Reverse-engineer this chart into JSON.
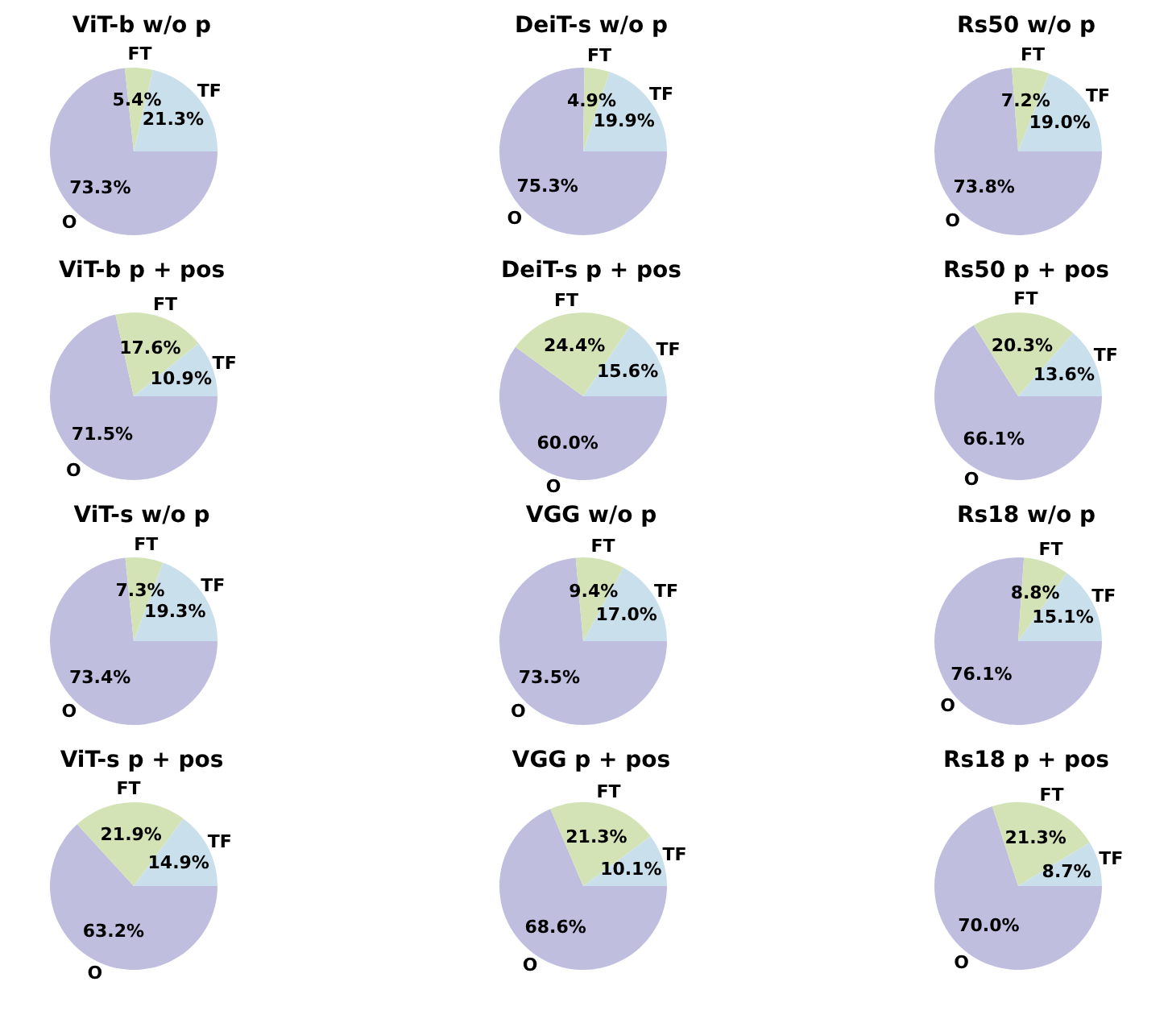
{
  "chart_data": [
    {
      "type": "pie",
      "title": "ViT-b w/o p",
      "categories": [
        "TF",
        "FT",
        "O"
      ],
      "values": [
        21.3,
        5.4,
        73.3
      ],
      "colors": [
        "#c9e0ec",
        "#d3e3b5",
        "#c0bedf"
      ],
      "value_labels": [
        "21.3%",
        "5.4%",
        "73.3%"
      ]
    },
    {
      "type": "pie",
      "title": "DeiT-s w/o p",
      "categories": [
        "TF",
        "FT",
        "O"
      ],
      "values": [
        19.9,
        4.9,
        75.3
      ],
      "colors": [
        "#c9e0ec",
        "#d3e3b5",
        "#c0bedf"
      ],
      "value_labels": [
        "19.9%",
        "4.9%",
        "75.3%"
      ]
    },
    {
      "type": "pie",
      "title": "Rs50 w/o p",
      "categories": [
        "TF",
        "FT",
        "O"
      ],
      "values": [
        19.0,
        7.2,
        73.8
      ],
      "colors": [
        "#c9e0ec",
        "#d3e3b5",
        "#c0bedf"
      ],
      "value_labels": [
        "19.0%",
        "7.2%",
        "73.8%"
      ]
    },
    {
      "type": "pie",
      "title": "ViT-b p + pos",
      "categories": [
        "TF",
        "FT",
        "O"
      ],
      "values": [
        10.9,
        17.6,
        71.5
      ],
      "colors": [
        "#c9e0ec",
        "#d3e3b5",
        "#c0bedf"
      ],
      "value_labels": [
        "10.9%",
        "17.6%",
        "71.5%"
      ]
    },
    {
      "type": "pie",
      "title": "DeiT-s p + pos",
      "categories": [
        "TF",
        "FT",
        "O"
      ],
      "values": [
        15.6,
        24.4,
        60.0
      ],
      "colors": [
        "#c9e0ec",
        "#d3e3b5",
        "#c0bedf"
      ],
      "value_labels": [
        "15.6%",
        "24.4%",
        "60.0%"
      ]
    },
    {
      "type": "pie",
      "title": "Rs50 p + pos",
      "categories": [
        "TF",
        "FT",
        "O"
      ],
      "values": [
        13.6,
        20.3,
        66.1
      ],
      "colors": [
        "#c9e0ec",
        "#d3e3b5",
        "#c0bedf"
      ],
      "value_labels": [
        "13.6%",
        "20.3%",
        "66.1%"
      ]
    },
    {
      "type": "pie",
      "title": "ViT-s w/o p",
      "categories": [
        "TF",
        "FT",
        "O"
      ],
      "values": [
        19.3,
        7.3,
        73.4
      ],
      "colors": [
        "#c9e0ec",
        "#d3e3b5",
        "#c0bedf"
      ],
      "value_labels": [
        "19.3%",
        "7.3%",
        "73.4%"
      ]
    },
    {
      "type": "pie",
      "title": "VGG w/o p",
      "categories": [
        "TF",
        "FT",
        "O"
      ],
      "values": [
        17.0,
        9.4,
        73.5
      ],
      "colors": [
        "#c9e0ec",
        "#d3e3b5",
        "#c0bedf"
      ],
      "value_labels": [
        "17.0%",
        "9.4%",
        "73.5%"
      ]
    },
    {
      "type": "pie",
      "title": "Rs18 w/o p",
      "categories": [
        "TF",
        "FT",
        "O"
      ],
      "values": [
        15.1,
        8.8,
        76.1
      ],
      "colors": [
        "#c9e0ec",
        "#d3e3b5",
        "#c0bedf"
      ],
      "value_labels": [
        "15.1%",
        "8.8%",
        "76.1%"
      ]
    },
    {
      "type": "pie",
      "title": "ViT-s p + pos",
      "categories": [
        "TF",
        "FT",
        "O"
      ],
      "values": [
        14.9,
        21.9,
        63.2
      ],
      "colors": [
        "#c9e0ec",
        "#d3e3b5",
        "#c0bedf"
      ],
      "value_labels": [
        "14.9%",
        "21.9%",
        "63.2%"
      ]
    },
    {
      "type": "pie",
      "title": "VGG p + pos",
      "categories": [
        "TF",
        "FT",
        "O"
      ],
      "values": [
        10.1,
        21.3,
        68.6
      ],
      "colors": [
        "#c9e0ec",
        "#d3e3b5",
        "#c0bedf"
      ],
      "value_labels": [
        "10.1%",
        "21.3%",
        "68.6%"
      ]
    },
    {
      "type": "pie",
      "title": "Rs18 p + pos",
      "categories": [
        "TF",
        "FT",
        "O"
      ],
      "values": [
        8.7,
        21.3,
        70.0
      ],
      "colors": [
        "#c9e0ec",
        "#d3e3b5",
        "#c0bedf"
      ],
      "value_labels": [
        "8.7%",
        "21.3%",
        "70.0%"
      ]
    }
  ]
}
